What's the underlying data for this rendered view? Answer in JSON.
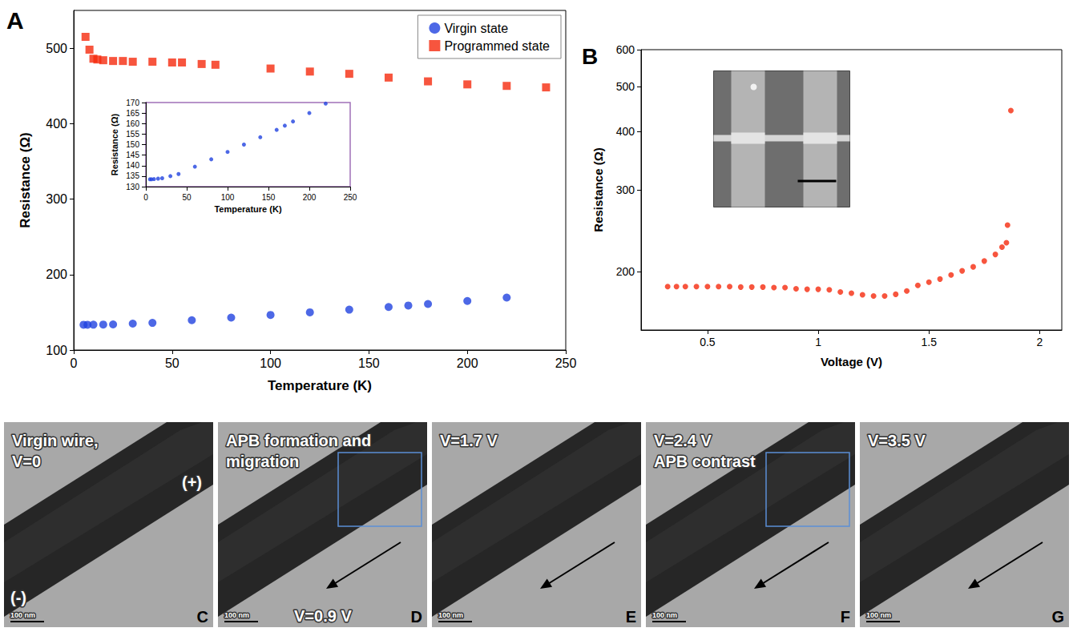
{
  "chart_data": [
    {
      "type": "scatter",
      "panel_label": "A",
      "x_label": "Temperature (K)",
      "y_label": "Resistance (Ω)",
      "xlim": [
        0,
        250
      ],
      "xticks": [
        0,
        50,
        100,
        150,
        200,
        250
      ],
      "ylim": [
        100,
        550
      ],
      "yticks": [
        100,
        200,
        300,
        400,
        500
      ],
      "grid": false,
      "legend": "top-right",
      "series": [
        {
          "name": "Virgin state",
          "color": "#2042e0",
          "marker": "circle",
          "x": [
            5,
            7,
            10,
            15,
            20,
            30,
            40,
            60,
            80,
            100,
            120,
            140,
            160,
            170,
            180,
            200,
            220
          ],
          "values": [
            133.5,
            133.5,
            133.6,
            133.8,
            134,
            135,
            136,
            139.5,
            143,
            146.5,
            150,
            153.5,
            157,
            159,
            161,
            165,
            169.5
          ]
        },
        {
          "name": "Programmed state",
          "color": "#f52a0e",
          "marker": "square",
          "x": [
            6,
            8,
            10,
            12,
            15,
            20,
            25,
            30,
            40,
            50,
            55,
            65,
            72,
            100,
            120,
            140,
            160,
            180,
            200,
            220,
            240
          ],
          "values": [
            515,
            498,
            486,
            485,
            484,
            483,
            483,
            482,
            482,
            481,
            481,
            479,
            478,
            473,
            469,
            466,
            461,
            456,
            452,
            450,
            448
          ]
        }
      ]
    },
    {
      "type": "scatter",
      "x_label": "Temperature (K)",
      "y_label": "Resistance (Ω)",
      "xlim": [
        0,
        250
      ],
      "xticks": [
        0,
        50,
        100,
        150,
        200,
        250
      ],
      "ylim": [
        130,
        170
      ],
      "yticks": [
        130,
        135,
        140,
        145,
        150,
        155,
        160,
        165,
        170
      ],
      "grid": false,
      "series": [
        {
          "color": "#2042e0",
          "marker": "circle",
          "x": [
            5,
            7,
            10,
            15,
            20,
            30,
            40,
            60,
            80,
            100,
            120,
            140,
            160,
            170,
            180,
            200,
            220
          ],
          "values": [
            133.5,
            133.5,
            133.6,
            133.8,
            134,
            135,
            136,
            139.5,
            143,
            146.5,
            150,
            153.5,
            157,
            159,
            161,
            165,
            169.5
          ]
        }
      ]
    },
    {
      "type": "scatter",
      "panel_label": "B",
      "x_label": "Voltage (V)",
      "y_label": "Resistance (Ω)",
      "xlim": [
        0.2,
        2.1
      ],
      "xticks": [
        0.5,
        1,
        1.5,
        2
      ],
      "ylim": [
        150,
        600
      ],
      "yticks": [
        200,
        300,
        400,
        500,
        600
      ],
      "log": "y",
      "grid": false,
      "series": [
        {
          "color": "#f52a0e",
          "marker": "circle",
          "x": [
            0.32,
            0.36,
            0.4,
            0.45,
            0.5,
            0.55,
            0.6,
            0.65,
            0.7,
            0.75,
            0.8,
            0.85,
            0.9,
            0.95,
            1.0,
            1.05,
            1.1,
            1.15,
            1.2,
            1.25,
            1.3,
            1.35,
            1.4,
            1.45,
            1.5,
            1.55,
            1.6,
            1.65,
            1.7,
            1.75,
            1.8,
            1.83,
            1.85,
            1.855,
            1.87
          ],
          "values": [
            186,
            186,
            186,
            186,
            186,
            186,
            186,
            185.5,
            185.5,
            185.5,
            185,
            185,
            184,
            183.5,
            183.5,
            183,
            181,
            180,
            178.5,
            177.5,
            177.5,
            179,
            182,
            187,
            190,
            193,
            197,
            201,
            205,
            211,
            218,
            226,
            231,
            252,
            444
          ]
        }
      ]
    }
  ],
  "micrographs": [
    {
      "letter": "C",
      "lines": [
        "Virgin wire,",
        "V=0"
      ],
      "polarity": [
        "(+)",
        "(-)"
      ],
      "scale_bar": "100 nm"
    },
    {
      "letter": "D",
      "lines": [
        "APB formation and",
        "migration"
      ],
      "bottom_text": "V=0.9 V",
      "arrow": true,
      "box": true,
      "scale_bar": "100 nm"
    },
    {
      "letter": "E",
      "lines": [
        "V=1.7 V"
      ],
      "arrow": true,
      "scale_bar": "100 nm"
    },
    {
      "letter": "F",
      "lines": [
        "V=2.4 V",
        "APB contrast"
      ],
      "arrow": true,
      "box": true,
      "scale_bar": "100 nm"
    },
    {
      "letter": "G",
      "lines": [
        "V=3.5 V"
      ],
      "arrow": true,
      "scale_bar": "100 nm"
    }
  ]
}
